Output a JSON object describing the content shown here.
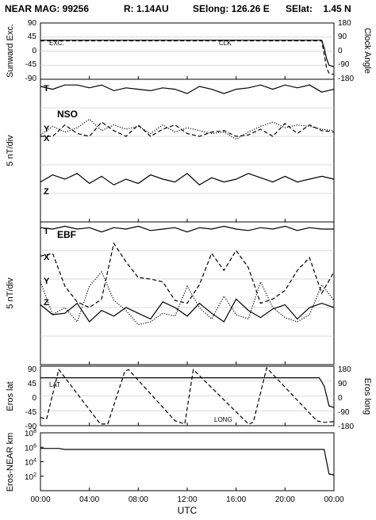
{
  "header": {
    "mission": "NEAR MAG: 99256",
    "distance": "R: 1.14AU",
    "selong": "SElong:  126.26 E",
    "selat": "SElat:    1.45 N"
  },
  "x_axis": {
    "label": "UTC",
    "ticks": [
      "00:00",
      "04:00",
      "08:00",
      "12:00",
      "16:00",
      "20:00",
      "00:00"
    ],
    "range_hours": [
      0,
      24
    ]
  },
  "chart_data": [
    {
      "id": "p1",
      "type": "line",
      "ylabel_left": "Sunward Exc.",
      "ylabel_right": "Clock Angle",
      "yticks_left": [
        "90",
        "45",
        "0",
        "-45",
        "-90"
      ],
      "yticks_right": [
        "180",
        "90",
        "0",
        "-90",
        "-180"
      ],
      "ylim": [
        -90,
        90
      ],
      "series": [
        {
          "name": "EXC.",
          "style": "solid",
          "x": [
            0,
            22.8,
            23.0,
            23.2,
            23.4,
            23.6,
            24
          ],
          "y": [
            35,
            35,
            35,
            10,
            -25,
            -45,
            -50
          ]
        },
        {
          "name": "CLK",
          "style": "dashed",
          "x": [
            0,
            22.8,
            23.0,
            23.2,
            23.4,
            23.6,
            24
          ],
          "y": [
            33,
            33,
            33,
            -10,
            -55,
            -70,
            -75
          ]
        }
      ]
    },
    {
      "id": "p2",
      "type": "line",
      "panel_label": "NSO",
      "ylabel_left": "5 nT/div",
      "ylim": [
        0,
        10
      ],
      "series": [
        {
          "name": "T",
          "style": "solid",
          "x": [
            0,
            1,
            2,
            3,
            4,
            5,
            6,
            7,
            8,
            9,
            10,
            11,
            12,
            13,
            14,
            15,
            16,
            17,
            18,
            19,
            20,
            21,
            22,
            23,
            24
          ],
          "y": [
            9.5,
            9.3,
            9.6,
            9.6,
            9.4,
            9.6,
            9.2,
            9.4,
            9.3,
            9.2,
            9.4,
            9.3,
            9.0,
            9.5,
            9.3,
            9.0,
            9.3,
            9.4,
            9.6,
            9.3,
            9.6,
            9.4,
            9.6,
            9.1,
            9.3
          ]
        },
        {
          "name": "Y",
          "style": "dashed",
          "x": [
            0,
            1,
            2,
            3,
            4,
            5,
            6,
            7,
            8,
            9,
            10,
            11,
            12,
            13,
            14,
            15,
            16,
            17,
            18,
            19,
            20,
            21,
            22,
            23,
            24
          ],
          "y": [
            6.0,
            6.0,
            6.8,
            6.2,
            6.0,
            7.0,
            6.4,
            6.0,
            6.8,
            6.0,
            6.5,
            6.8,
            6.2,
            6.0,
            6.3,
            6.4,
            6.0,
            6.1,
            6.5,
            6.0,
            6.9,
            6.2,
            6.8,
            6.4,
            6.3
          ]
        },
        {
          "name": "X",
          "style": "dotted",
          "x": [
            0,
            1,
            2,
            3,
            4,
            5,
            6,
            7,
            8,
            9,
            10,
            11,
            12,
            13,
            14,
            15,
            16,
            17,
            18,
            19,
            20,
            21,
            22,
            23,
            24
          ],
          "y": [
            6.1,
            6.7,
            6.3,
            6.6,
            7.2,
            6.4,
            6.8,
            6.5,
            6.7,
            6.2,
            6.8,
            6.3,
            6.6,
            6.4,
            6.2,
            6.3,
            5.8,
            6.3,
            6.7,
            7.0,
            6.6,
            6.8,
            6.7,
            6.5,
            6.4
          ]
        },
        {
          "name": "Z",
          "style": "solid",
          "x": [
            0,
            1,
            2,
            3,
            4,
            5,
            6,
            7,
            8,
            9,
            10,
            11,
            12,
            13,
            14,
            15,
            16,
            17,
            18,
            19,
            20,
            21,
            22,
            23,
            24
          ],
          "y": [
            2.8,
            3.3,
            3.0,
            3.4,
            2.7,
            3.2,
            2.6,
            3.0,
            2.7,
            3.3,
            3.0,
            2.8,
            3.4,
            2.6,
            3.1,
            2.8,
            3.0,
            3.4,
            3.1,
            2.8,
            3.2,
            2.8,
            3.0,
            3.2,
            3.0
          ]
        }
      ]
    },
    {
      "id": "p3",
      "type": "line",
      "panel_label": "EBF",
      "ylabel_left": "5 nT/div",
      "ylim": [
        0,
        10
      ],
      "series": [
        {
          "name": "T",
          "style": "solid",
          "x": [
            0,
            1,
            2,
            3,
            4,
            5,
            6,
            7,
            8,
            9,
            10,
            11,
            12,
            13,
            14,
            15,
            16,
            17,
            18,
            19,
            20,
            21,
            22,
            23,
            24
          ],
          "y": [
            9.6,
            9.5,
            9.7,
            9.5,
            9.6,
            9.3,
            9.6,
            9.5,
            9.7,
            9.4,
            9.5,
            9.6,
            9.3,
            9.6,
            9.5,
            9.7,
            9.5,
            9.4,
            9.6,
            9.5,
            9.7,
            9.4,
            9.6,
            9.5,
            9.5
          ]
        },
        {
          "name": "X",
          "style": "dashed",
          "x": [
            0,
            1,
            2,
            3,
            4,
            5,
            6,
            7,
            8,
            9,
            10,
            11,
            12,
            13,
            14,
            15,
            16,
            17,
            18,
            19,
            20,
            21,
            22,
            23,
            24
          ],
          "y": [
            7.6,
            7.8,
            5.5,
            4.4,
            4.0,
            4.6,
            8.5,
            7.2,
            6.1,
            6.0,
            5.8,
            4.5,
            4.3,
            5.6,
            7.8,
            6.6,
            8.0,
            6.8,
            4.3,
            4.6,
            5.2,
            6.6,
            7.5,
            5.0,
            6.5
          ]
        },
        {
          "name": "Y",
          "style": "dotted",
          "x": [
            0,
            1,
            2,
            3,
            4,
            5,
            6,
            7,
            8,
            9,
            10,
            11,
            12,
            13,
            14,
            15,
            16,
            17,
            18,
            19,
            20,
            21,
            22,
            23,
            24
          ],
          "y": [
            5.8,
            3.5,
            4.0,
            3.0,
            5.5,
            6.5,
            4.5,
            3.8,
            2.8,
            3.0,
            3.6,
            3.4,
            5.5,
            4.0,
            3.2,
            4.8,
            3.5,
            3.2,
            5.8,
            4.0,
            3.3,
            3.0,
            3.5,
            5.6,
            4.5
          ]
        },
        {
          "name": "Z",
          "style": "solid",
          "x": [
            0,
            1,
            2,
            3,
            4,
            5,
            6,
            7,
            8,
            9,
            10,
            11,
            12,
            13,
            14,
            15,
            16,
            17,
            18,
            19,
            20,
            21,
            22,
            23,
            24
          ],
          "y": [
            4.2,
            3.5,
            3.6,
            4.3,
            3.0,
            3.8,
            3.4,
            4.0,
            3.6,
            3.2,
            4.4,
            4.0,
            3.4,
            4.3,
            3.6,
            3.0,
            4.6,
            3.8,
            3.3,
            3.9,
            4.2,
            3.2,
            4.0,
            4.3,
            4.0
          ]
        }
      ]
    },
    {
      "id": "p4",
      "type": "line",
      "ylabel_left": "Eros lat",
      "ylabel_right": "Eros long",
      "yticks_left": [
        "90",
        "45",
        "0",
        "-45",
        "-90"
      ],
      "yticks_right": [
        "180",
        "90",
        "0",
        "-90",
        "-180"
      ],
      "ylim": [
        -90,
        90
      ],
      "series": [
        {
          "name": "LAT",
          "style": "solid",
          "x": [
            0,
            22.8,
            23.2,
            23.6,
            24
          ],
          "y": [
            55,
            55,
            30,
            -30,
            -35
          ]
        },
        {
          "name": "LONG",
          "style": "dashed",
          "x": [
            0,
            0.5,
            1.5,
            4.9,
            5.5,
            6.9,
            7.2,
            11.0,
            11.8,
            12.5,
            17.0,
            17.4,
            18.5,
            22.6,
            23.2,
            24
          ],
          "y": [
            -65,
            -70,
            80,
            -85,
            -85,
            75,
            80,
            -75,
            -85,
            80,
            -85,
            -80,
            85,
            -75,
            -80,
            -78
          ]
        }
      ]
    },
    {
      "id": "p5",
      "type": "line",
      "ylabel_left": "Eros-NEAR km",
      "ylim_log": [
        1,
        100000000
      ],
      "yticks": [
        {
          "base": "10",
          "exp": "8",
          "value": 100000000
        },
        {
          "base": "10",
          "exp": "6",
          "value": 1000000
        },
        {
          "base": "10",
          "exp": "4",
          "value": 10000
        },
        {
          "base": "10",
          "exp": "2",
          "value": 100
        }
      ],
      "series": [
        {
          "name": "range",
          "style": "solid",
          "x": [
            0,
            1.5,
            2,
            23.2,
            23.6,
            24
          ],
          "y": [
            700000,
            700000,
            500000,
            500000,
            200,
            150
          ]
        }
      ]
    }
  ]
}
